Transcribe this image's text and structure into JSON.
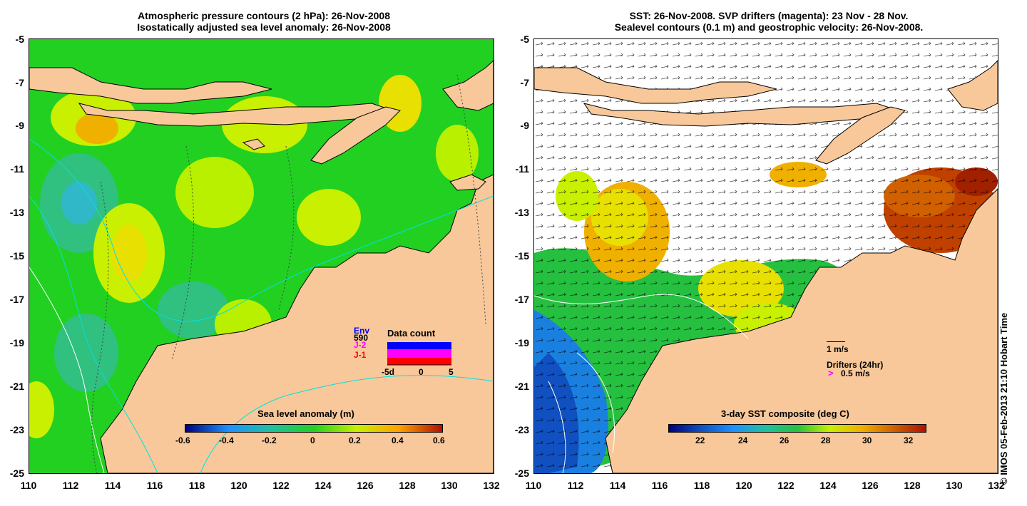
{
  "left_panel": {
    "title_line1": "Atmospheric pressure contours (2 hPa): 26-Nov-2008",
    "title_line2": "Isostatically adjusted sea level anomaly: 26-Nov-2008",
    "colorbar_title": "Sea level anomaly (m)",
    "colorbar_ticks": [
      "-0.6",
      "-0.4",
      "-0.2",
      "0",
      "0.2",
      "0.4",
      "0.6"
    ],
    "data_count": {
      "title": "Data count",
      "series_labels": [
        "Env",
        "J-2",
        "J-1"
      ],
      "series_colors": [
        "#0000ff",
        "#ff00ff",
        "#ff0000"
      ],
      "count": "590",
      "x_ticks": [
        "-5d",
        "0",
        "5"
      ]
    }
  },
  "right_panel": {
    "title_line1": "SST: 26-Nov-2008. SVP drifters (magenta): 23 Nov - 28 Nov.",
    "title_line2": "Sealevel contours (0.1 m) and geostrophic velocity: 26-Nov-2008.",
    "colorbar_title": "3-day SST composite (deg C)",
    "colorbar_ticks": [
      "22",
      "24",
      "26",
      "28",
      "30",
      "32"
    ],
    "velocity_scale": "1 m/s",
    "drifters_label": "Drifters (24hr)",
    "drifter_speed": "0.5 m/s"
  },
  "y_ticks": [
    "-5",
    "-7",
    "-9",
    "-11",
    "-13",
    "-15",
    "-17",
    "-19",
    "-21",
    "-23",
    "-25"
  ],
  "x_ticks": [
    "110",
    "112",
    "114",
    "116",
    "118",
    "120",
    "122",
    "124",
    "126",
    "128",
    "130",
    "132"
  ],
  "copyright": "© IMOS 05-Feb-2013 21:10 Hobart Time",
  "colors": {
    "land": "#f8c89a",
    "sea_level_base": "#22d022",
    "ocean_white": "#ffffff"
  }
}
